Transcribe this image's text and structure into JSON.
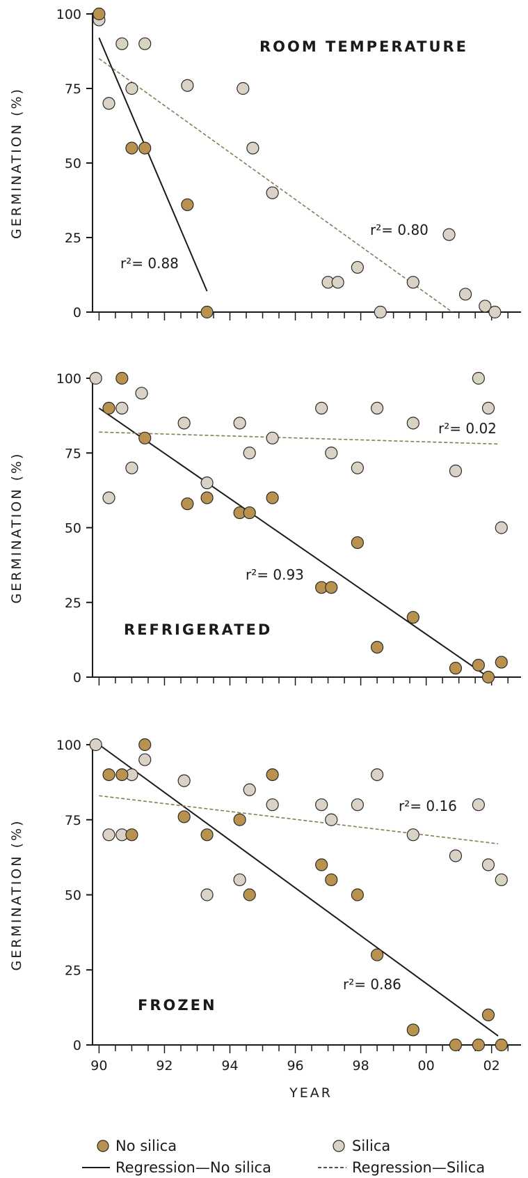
{
  "colors": {
    "no_silica": "#b8924e",
    "silica": "#d9d2c5",
    "outline": "#2a2a2a",
    "line": "#1a1a1a",
    "dashed": "#8a7a55"
  },
  "chart_data": [
    {
      "type": "scatter",
      "title": "ROOM TEMPERATURE",
      "ylabel": "GERMINATION (%)",
      "xlabel": "",
      "ylim": [
        0,
        100
      ],
      "xlim": [
        89.8,
        102.9
      ],
      "yticks": [
        "0",
        "25",
        "50",
        "75",
        "100"
      ],
      "series": [
        {
          "name": "No silica",
          "points": [
            [
              90.0,
              100
            ],
            [
              91.0,
              55
            ],
            [
              91.4,
              55
            ],
            [
              92.7,
              36
            ],
            [
              93.3,
              0
            ]
          ]
        },
        {
          "name": "Silica",
          "points": [
            [
              90.0,
              98
            ],
            [
              90.3,
              70
            ],
            [
              90.7,
              90
            ],
            [
              91.0,
              75
            ],
            [
              91.4,
              90
            ],
            [
              92.7,
              76
            ],
            [
              94.4,
              75
            ],
            [
              94.7,
              55
            ],
            [
              95.3,
              40
            ],
            [
              97.0,
              10
            ],
            [
              97.3,
              10
            ],
            [
              97.9,
              15
            ],
            [
              98.6,
              0
            ],
            [
              99.6,
              10
            ],
            [
              100.7,
              26
            ],
            [
              101.2,
              6
            ],
            [
              101.8,
              2
            ],
            [
              102.1,
              0
            ]
          ]
        }
      ],
      "regressions": [
        {
          "name": "No silica",
          "style": "solid",
          "from": [
            90.0,
            92
          ],
          "to": [
            93.3,
            7
          ],
          "r2": "r²= 0.88"
        },
        {
          "name": "Silica",
          "style": "dashed",
          "from": [
            90.0,
            85
          ],
          "to": [
            100.8,
            0
          ],
          "r2": "r²= 0.80"
        }
      ]
    },
    {
      "type": "scatter",
      "title": "REFRIGERATED",
      "ylabel": "GERMINATION (%)",
      "xlabel": "",
      "ylim": [
        0,
        100
      ],
      "xlim": [
        89.8,
        102.9
      ],
      "yticks": [
        "0",
        "25",
        "50",
        "75",
        "100"
      ],
      "series": [
        {
          "name": "No silica",
          "points": [
            [
              90.3,
              90
            ],
            [
              90.7,
              100
            ],
            [
              91.4,
              80
            ],
            [
              92.7,
              58
            ],
            [
              93.3,
              60
            ],
            [
              94.3,
              55
            ],
            [
              94.6,
              55
            ],
            [
              95.3,
              60
            ],
            [
              96.8,
              30
            ],
            [
              97.1,
              30
            ],
            [
              97.9,
              45
            ],
            [
              98.5,
              10
            ],
            [
              99.6,
              20
            ],
            [
              100.9,
              3
            ],
            [
              101.6,
              4
            ],
            [
              101.9,
              0
            ],
            [
              102.3,
              5
            ]
          ]
        },
        {
          "name": "Silica",
          "points": [
            [
              89.9,
              100
            ],
            [
              90.3,
              60
            ],
            [
              90.7,
              90
            ],
            [
              91.0,
              70
            ],
            [
              91.3,
              95
            ],
            [
              92.6,
              85
            ],
            [
              93.3,
              65
            ],
            [
              94.3,
              85
            ],
            [
              94.6,
              75
            ],
            [
              95.3,
              80
            ],
            [
              96.8,
              90
            ],
            [
              97.1,
              75
            ],
            [
              97.9,
              70
            ],
            [
              98.5,
              90
            ],
            [
              99.6,
              85
            ],
            [
              100.9,
              69
            ],
            [
              101.6,
              100
            ],
            [
              101.9,
              90
            ],
            [
              102.3,
              50
            ]
          ]
        }
      ],
      "regressions": [
        {
          "name": "No silica",
          "style": "solid",
          "from": [
            90.0,
            90
          ],
          "to": [
            101.9,
            0
          ],
          "r2": "r²= 0.93"
        },
        {
          "name": "Silica",
          "style": "dashed",
          "from": [
            90.0,
            82
          ],
          "to": [
            102.2,
            78
          ],
          "r2": "r²= 0.02"
        }
      ]
    },
    {
      "type": "scatter",
      "title": "FROZEN",
      "ylabel": "GERMINATION (%)",
      "xlabel": "YEAR",
      "ylim": [
        0,
        100
      ],
      "xlim": [
        89.8,
        102.9
      ],
      "yticks": [
        "0",
        "25",
        "50",
        "75",
        "100"
      ],
      "xticks": [
        "90",
        "92",
        "94",
        "96",
        "98",
        "00",
        "02"
      ],
      "series": [
        {
          "name": "No silica",
          "points": [
            [
              90.3,
              90
            ],
            [
              90.7,
              90
            ],
            [
              91.4,
              100
            ],
            [
              91.0,
              70
            ],
            [
              92.6,
              76
            ],
            [
              93.3,
              70
            ],
            [
              94.3,
              75
            ],
            [
              94.6,
              50
            ],
            [
              95.3,
              90
            ],
            [
              96.8,
              60
            ],
            [
              97.1,
              55
            ],
            [
              97.9,
              50
            ],
            [
              98.5,
              30
            ],
            [
              99.6,
              5
            ],
            [
              100.9,
              0
            ],
            [
              101.6,
              0
            ],
            [
              101.9,
              10
            ],
            [
              102.3,
              0
            ]
          ]
        },
        {
          "name": "Silica",
          "points": [
            [
              89.9,
              100
            ],
            [
              90.3,
              70
            ],
            [
              90.7,
              70
            ],
            [
              91.0,
              90
            ],
            [
              91.4,
              95
            ],
            [
              92.6,
              88
            ],
            [
              93.3,
              50
            ],
            [
              94.3,
              55
            ],
            [
              94.6,
              85
            ],
            [
              95.3,
              80
            ],
            [
              96.8,
              80
            ],
            [
              97.1,
              75
            ],
            [
              97.9,
              80
            ],
            [
              98.5,
              90
            ],
            [
              99.6,
              70
            ],
            [
              100.9,
              63
            ],
            [
              101.6,
              80
            ],
            [
              101.9,
              60
            ],
            [
              102.3,
              55
            ]
          ]
        }
      ],
      "regressions": [
        {
          "name": "No silica",
          "style": "solid",
          "from": [
            90.0,
            100
          ],
          "to": [
            102.2,
            3
          ],
          "r2": "r²= 0.86"
        },
        {
          "name": "Silica",
          "style": "dashed",
          "from": [
            90.0,
            83
          ],
          "to": [
            102.2,
            67
          ],
          "r2": "r²= 0.16"
        }
      ]
    }
  ],
  "legend": {
    "no_silica": "No silica",
    "silica": "Silica",
    "regression_no_silica": "Regression—No silica",
    "regression_silica": "Regression—Silica"
  }
}
